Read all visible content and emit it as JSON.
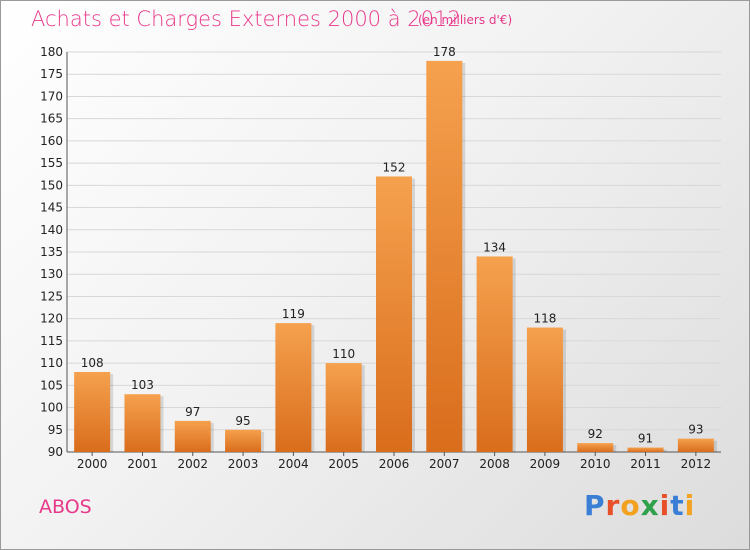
{
  "header": {
    "title": "Achats et Charges Externes 2000 à 2012",
    "subtitle": "(en milliers d'€)"
  },
  "footer": {
    "commune": "ABOS",
    "brand": "Proxiti"
  },
  "colors": {
    "accent": "#e8388a",
    "bar_top": "#f5a14e",
    "bar_bottom": "#d96d1c",
    "grid": "#d8d8d8",
    "brand_letters": [
      "#3a7fd5",
      "#e8502a",
      "#f2a21e",
      "#2fa14b",
      "#e8502a",
      "#3a7fd5",
      "#f2a21e"
    ]
  },
  "chart_data": {
    "type": "bar",
    "title": "Achats et Charges Externes 2000 à 2012",
    "subtitle": "(en milliers d'€)",
    "categories": [
      "2000",
      "2001",
      "2002",
      "2003",
      "2004",
      "2005",
      "2006",
      "2007",
      "2008",
      "2009",
      "2010",
      "2011",
      "2012"
    ],
    "values": [
      108,
      103,
      97,
      95,
      119,
      110,
      152,
      178,
      134,
      118,
      92,
      91,
      93
    ],
    "ylim": [
      90,
      180
    ],
    "yticks": [
      90,
      95,
      100,
      105,
      110,
      115,
      120,
      125,
      130,
      135,
      140,
      145,
      150,
      155,
      160,
      165,
      170,
      175,
      180
    ],
    "grid": true,
    "data_labels": true
  }
}
